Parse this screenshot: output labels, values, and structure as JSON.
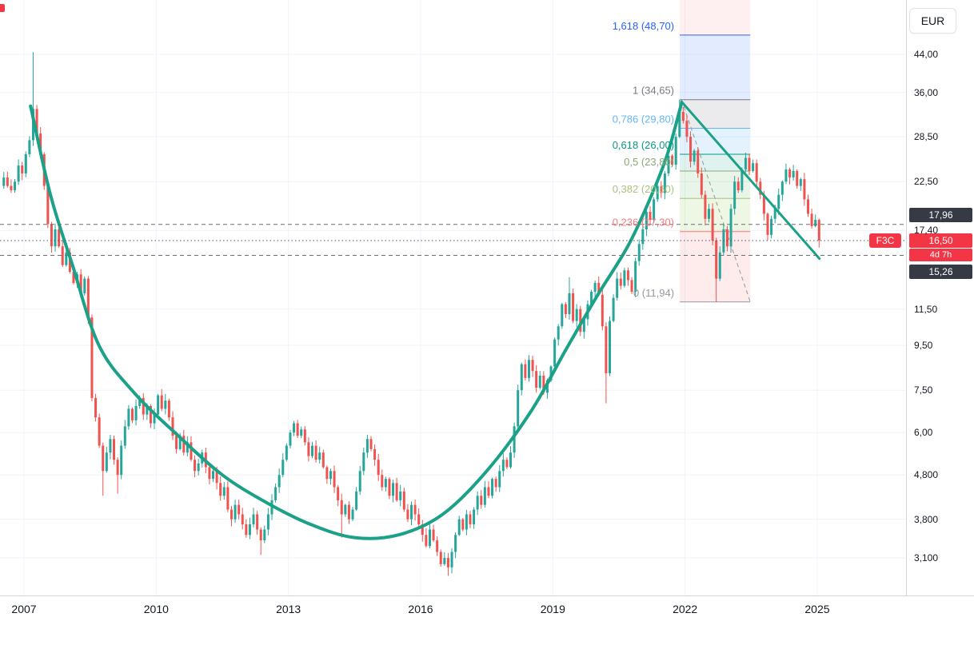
{
  "symbol": {
    "name": "F3C",
    "currency": "EUR"
  },
  "price_axis": {
    "ticks": [
      {
        "label": "44,00",
        "value": 44
      },
      {
        "label": "36,00",
        "value": 36
      },
      {
        "label": "28,50",
        "value": 28.5
      },
      {
        "label": "22,50",
        "value": 22.5
      },
      {
        "label": "17,40",
        "value": 17.4
      },
      {
        "label": "11,50",
        "value": 11.5
      },
      {
        "label": "9,50",
        "value": 9.5
      },
      {
        "label": "7,50",
        "value": 7.5
      },
      {
        "label": "6,00",
        "value": 6
      },
      {
        "label": "4,800",
        "value": 4.8
      },
      {
        "label": "3,800",
        "value": 3.8
      },
      {
        "label": "3,100",
        "value": 3.1
      }
    ],
    "upper_badge": {
      "label": "17,96",
      "value": 17.96
    },
    "current": {
      "label": "16,50",
      "value": 16.5,
      "countdown": "4d 7h",
      "symbol": "F3C"
    },
    "lower_badge": {
      "label": "15,26",
      "value": 15.26
    }
  },
  "time_axis": {
    "labels": [
      "2007",
      "2010",
      "2013",
      "2016",
      "2019",
      "2022",
      "2025"
    ]
  },
  "colors": {
    "up": "#26a69a",
    "down": "#ef5350",
    "grid": "#f0f3fa",
    "axis_text": "#131722",
    "badge_dark": "#363a45",
    "current_price_line": "#50535e",
    "hline_dash": "#6a6d78",
    "trend": "#1aa187"
  },
  "chart_data": {
    "type": "candlestick",
    "currency": "EUR",
    "scale": "log",
    "x_axis": {
      "tick_years": [
        2007,
        2010,
        2013,
        2016,
        2019,
        2022,
        2025
      ]
    },
    "y_axis": {
      "ticks": [
        44,
        36,
        28.5,
        22.5,
        17.4,
        11.5,
        9.5,
        7.5,
        6,
        4.8,
        3.8,
        3.1
      ],
      "range": [
        2.54,
        58.6
      ]
    },
    "series": {
      "start": "2006-07",
      "interval": "monthly",
      "first_open": 22.0,
      "monthly_closes": [
        23,
        22,
        21.5,
        22.5,
        24.5,
        23.5,
        26,
        28,
        33,
        29,
        26,
        22,
        18,
        16,
        17.5,
        16,
        14.5,
        15.5,
        14,
        13.2,
        13.8,
        12.5,
        13.5,
        11,
        7.2,
        6.5,
        5.6,
        4.9,
        5.4,
        5.8,
        5.2,
        4.8,
        5.6,
        6.2,
        6.8,
        6.4,
        6.9,
        7.2,
        6.6,
        6.9,
        6.3,
        6.6,
        7.3,
        6.8,
        7.1,
        6.5,
        5.9,
        5.5,
        5.9,
        5.4,
        5.7,
        5.2,
        4.9,
        5.1,
        5.4,
        5,
        4.7,
        4.9,
        4.6,
        4.3,
        4.5,
        4,
        3.8,
        4.1,
        3.9,
        3.7,
        3.5,
        3.7,
        3.9,
        3.6,
        3.4,
        3.6,
        3.9,
        4.2,
        4.5,
        4.8,
        5.2,
        5.6,
        6,
        6.3,
        5.9,
        6.1,
        5.7,
        5.3,
        5.6,
        5.2,
        5.4,
        5,
        4.7,
        4.9,
        4.5,
        4.2,
        3.9,
        4.1,
        3.8,
        4,
        4.4,
        4.9,
        5.4,
        5.8,
        5.5,
        5.2,
        4.8,
        4.5,
        4.7,
        4.3,
        4.6,
        4.2,
        4.4,
        4,
        3.8,
        4.1,
        3.9,
        3.7,
        3.5,
        3.3,
        3.6,
        3.4,
        3.2,
        3,
        3.1,
        2.95,
        3.2,
        3.5,
        3.8,
        3.6,
        3.9,
        3.7,
        4,
        4.3,
        4.1,
        4.5,
        4.3,
        4.7,
        4.5,
        4.9,
        5.2,
        5,
        5.4,
        6.2,
        7.5,
        8.6,
        8,
        8.8,
        8.3,
        7.6,
        8.1,
        7.4,
        7.9,
        8.5,
        9.8,
        10.5,
        11.8,
        11.2,
        12.5,
        10.8,
        11.5,
        10.2,
        10.9,
        11.8,
        12.6,
        13.2,
        12.4,
        10.5,
        8.2,
        10.8,
        12.2,
        13.5,
        13,
        14.1,
        13.4,
        12.6,
        14.8,
        16.2,
        17.5,
        19.2,
        18.4,
        20.5,
        22,
        21.2,
        23.5,
        25.8,
        24.6,
        28.5,
        32.5,
        31,
        28.5,
        25,
        26.5,
        23.5,
        21,
        18.5,
        19.5,
        16.5,
        13.5,
        15.5,
        17.5,
        16,
        19.5,
        22.5,
        21.5,
        24,
        25.5,
        23.8,
        24.8,
        22.5,
        21,
        19,
        17,
        18.5,
        19.5,
        21,
        22.5,
        24,
        23,
        23.8,
        22,
        22.8,
        20.5,
        19,
        17.8,
        18.4,
        16.5
      ],
      "wick_overrides": {
        "2007-03": {
          "high": 44.5
        },
        "2008-10": {
          "low": 4.3
        },
        "2009-02": {
          "low": 4.35
        },
        "2012-05": {
          "low": 3.15
        },
        "2014-03": {
          "low": 3.45
        },
        "2016-08": {
          "low": 2.82
        },
        "2019-05": {
          "high": 13.6
        },
        "2020-03": {
          "low": 7.0
        },
        "2021-11": {
          "high": 34.65
        },
        "2022-09": {
          "low": 11.94
        },
        "2023-05": {
          "high": 26.2
        },
        "2025-01": {
          "low": 15.9
        }
      }
    },
    "fibonacci": {
      "x_start": 2021.88,
      "x_end": 2023.48,
      "levels": [
        {
          "ratio": "1,618",
          "price": 48.7,
          "label": "1,618 (48,70)",
          "color": "#2962ff"
        },
        {
          "ratio": "1",
          "price": 34.65,
          "label": "1 (34,65)",
          "color": "#787b86"
        },
        {
          "ratio": "0,786",
          "price": 29.8,
          "label": "0,786 (29,80)",
          "color": "#64b5f6"
        },
        {
          "ratio": "0,618",
          "price": 26.0,
          "label": "0,618 (26,00)",
          "color": "#089981"
        },
        {
          "ratio": "0,5",
          "price": 23.8,
          "label": "0,5 (23,80)",
          "color": "#8ba87a"
        },
        {
          "ratio": "0,382",
          "price": 20.6,
          "label": "0,382 (20,60)",
          "color": "#a9c47f"
        },
        {
          "ratio": "0,236",
          "price": 17.3,
          "label": "0,236 (17,30)",
          "color": "#f7797f"
        },
        {
          "ratio": "0",
          "price": 11.94,
          "label": "0 (11,94)",
          "color": "#9598a1"
        }
      ],
      "zones": [
        {
          "from": 58.6,
          "to": 48.7,
          "fill": "rgba(242,54,69,0.08)"
        },
        {
          "from": 48.7,
          "to": 34.65,
          "fill": "rgba(41,98,255,0.13)"
        },
        {
          "from": 34.65,
          "to": 29.8,
          "fill": "rgba(120,123,134,0.15)"
        },
        {
          "from": 29.8,
          "to": 26.0,
          "fill": "rgba(100,181,246,0.18)"
        },
        {
          "from": 26.0,
          "to": 23.8,
          "fill": "rgba(8,153,129,0.13)"
        },
        {
          "from": 23.8,
          "to": 20.6,
          "fill": "rgba(76,175,80,0.13)"
        },
        {
          "from": 20.6,
          "to": 17.3,
          "fill": "rgba(139,195,74,0.15)"
        },
        {
          "from": 17.3,
          "to": 11.94,
          "fill": "rgba(242,54,69,0.10)"
        }
      ],
      "anchor_line": {
        "from": [
          2021.92,
          34.65
        ],
        "to": [
          2023.48,
          11.94
        ],
        "style": "dashed",
        "color": "#9598a1"
      }
    },
    "drawings": {
      "parabola_curve": {
        "color": "#1aa187",
        "width": 4,
        "points": [
          [
            2007.15,
            33.5
          ],
          [
            2007.6,
            21
          ],
          [
            2008.1,
            14.5
          ],
          [
            2008.7,
            9.5
          ],
          [
            2009.5,
            7.4
          ],
          [
            2010.5,
            5.9
          ],
          [
            2011.5,
            4.8
          ],
          [
            2012.5,
            4.15
          ],
          [
            2013.5,
            3.7
          ],
          [
            2014.5,
            3.45
          ],
          [
            2015.5,
            3.5
          ],
          [
            2016.5,
            3.9
          ],
          [
            2017.5,
            4.9
          ],
          [
            2018.5,
            6.7
          ],
          [
            2019.3,
            9.3
          ],
          [
            2020.0,
            12.3
          ],
          [
            2020.7,
            16
          ],
          [
            2021.2,
            20.5
          ],
          [
            2021.6,
            26
          ],
          [
            2021.92,
            34
          ]
        ]
      },
      "downtrend_line": {
        "color": "#1aa187",
        "width": 3,
        "from": [
          2021.92,
          34.3
        ],
        "to": [
          2025.05,
          15.0
        ]
      },
      "horizontal_lines": [
        {
          "label": "17,96",
          "price": 17.96,
          "style": "dashed"
        },
        {
          "label": "15,26",
          "price": 15.26,
          "style": "dashed"
        }
      ],
      "current_price": {
        "label": "16,50",
        "price": 16.5,
        "style": "dotted",
        "countdown": "4d 7h"
      }
    }
  }
}
